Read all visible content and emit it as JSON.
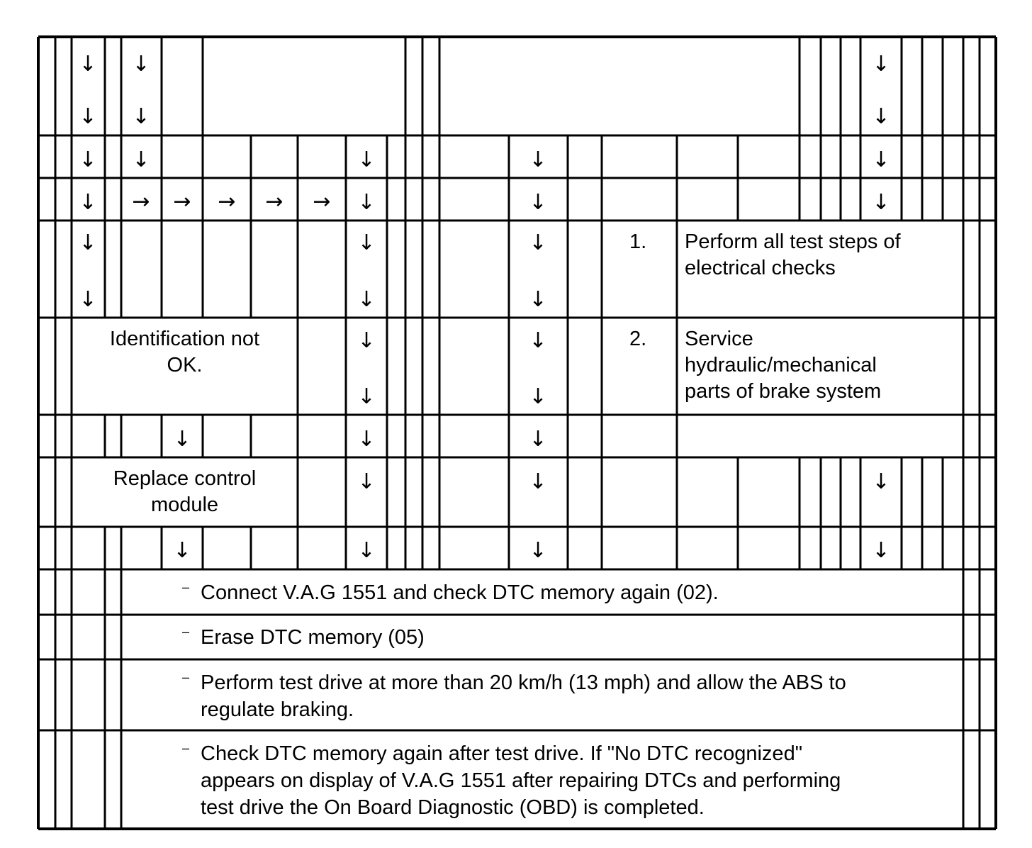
{
  "symbols": {
    "arrow_down": "↓",
    "arrow_right": "→",
    "dash": "–"
  },
  "boxes": {
    "identification_not_ok": [
      "Identification not",
      "OK."
    ],
    "replace_control_module": [
      "Replace control",
      "module"
    ],
    "step1": {
      "number": "1.",
      "lines": [
        "Perform all test steps of",
        "electrical checks"
      ]
    },
    "step2": {
      "number": "2.",
      "lines": [
        "Service",
        "hydraulic/mechanical",
        "parts of brake system"
      ]
    }
  },
  "instructions": [
    {
      "lines": [
        "Connect V.A.G 1551 and check DTC memory again (02)."
      ]
    },
    {
      "lines": [
        "Erase DTC memory (05)"
      ]
    },
    {
      "lines": [
        "Perform test drive at more than 20 km/h (13 mph) and allow the ABS to",
        "regulate braking."
      ]
    },
    {
      "lines": [
        "Check DTC memory again after test drive. If \"No DTC recognized\"",
        "appears on display of V.A.G 1551 after repairing DTCs and performing",
        "test drive the On Board Diagnostic (OBD) is completed."
      ]
    }
  ],
  "colors": {
    "line": "#000000",
    "background": "#ffffff"
  }
}
